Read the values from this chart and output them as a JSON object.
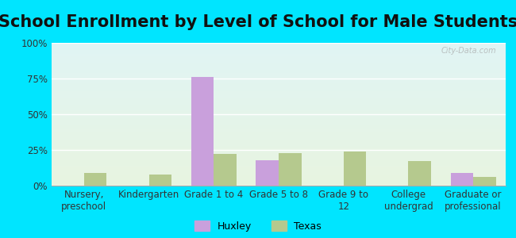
{
  "title": "School Enrollment by Level of School for Male Students",
  "categories": [
    "Nursery,\npreschool",
    "Kindergarten",
    "Grade 1 to 4",
    "Grade 5 to 8",
    "Grade 9 to\n12",
    "College\nundergrad",
    "Graduate or\nprofessional"
  ],
  "huxley_values": [
    0,
    0,
    76,
    18,
    0,
    0,
    9
  ],
  "texas_values": [
    9,
    8,
    22,
    23,
    24,
    17,
    6
  ],
  "huxley_color": "#c9a0dc",
  "texas_color": "#b5c98e",
  "ylim": [
    0,
    100
  ],
  "yticks": [
    0,
    25,
    50,
    75,
    100
  ],
  "ytick_labels": [
    "0%",
    "25%",
    "50%",
    "75%",
    "100%"
  ],
  "background_color_top": "#e0f5f5",
  "background_color_bottom": "#e8f5e0",
  "outer_bg": "#00e5ff",
  "legend_labels": [
    "Huxley",
    "Texas"
  ],
  "title_fontsize": 15,
  "tick_fontsize": 8.5
}
